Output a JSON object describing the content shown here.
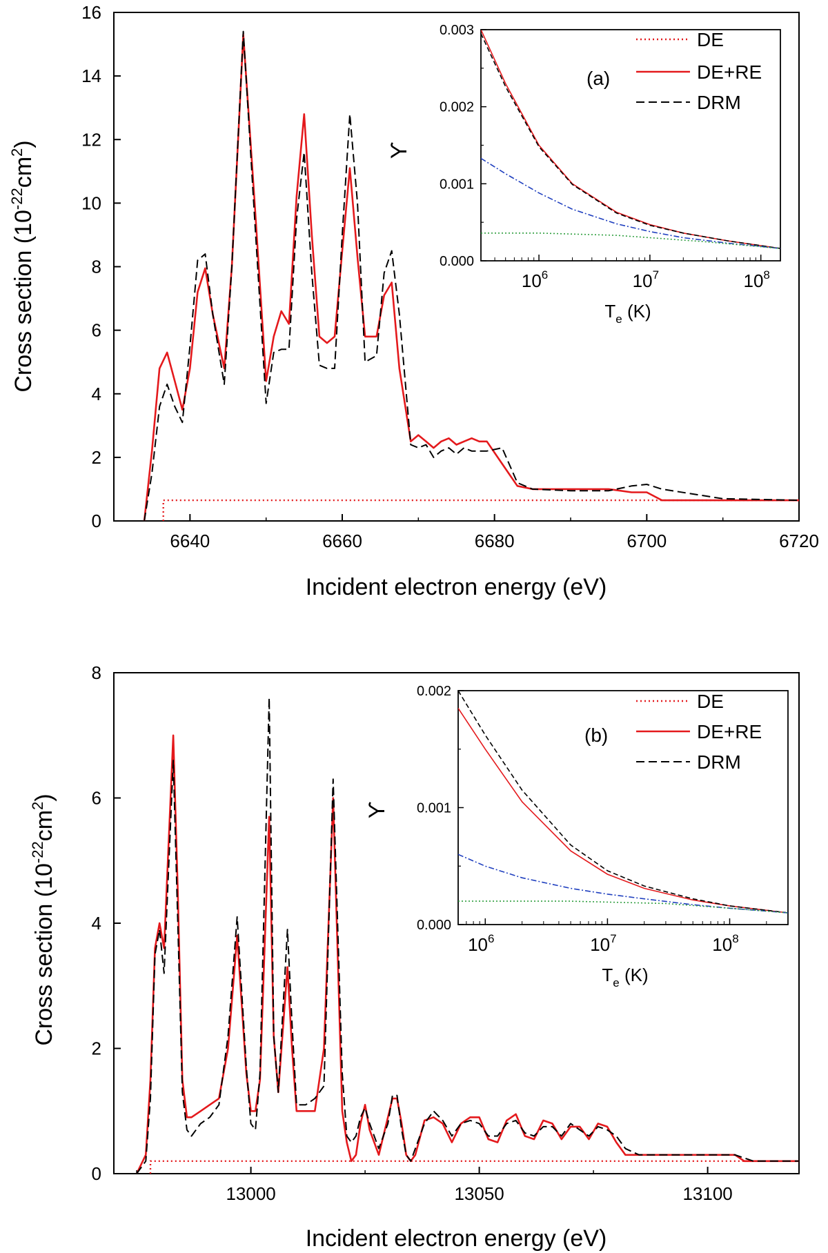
{
  "chart_data": [
    {
      "type": "line",
      "panel": "top",
      "xlabel": "Incident electron energy (eV)",
      "ylabel": "Cross section",
      "ylabel_unit": "(10-22cm2)",
      "xlim": [
        6630,
        6720
      ],
      "ylim": [
        0,
        16
      ],
      "xticks": [
        6640,
        6660,
        6680,
        6700,
        6720
      ],
      "yticks": [
        0,
        2,
        4,
        6,
        8,
        10,
        12,
        14,
        16
      ],
      "series": [
        {
          "name": "DE",
          "color": "#e4191c",
          "style": "dotted",
          "x": [
            6636.5,
            6636.5,
            6720
          ],
          "y": [
            0,
            0.65,
            0.65
          ]
        },
        {
          "name": "DE+RE",
          "color": "#e4191c",
          "style": "solid",
          "x": [
            6634,
            6635,
            6636,
            6637,
            6638,
            6639,
            6640,
            6641,
            6642,
            6643,
            6644.5,
            6645.5,
            6647,
            6648.5,
            6650,
            6651,
            6652,
            6653,
            6654,
            6655,
            6656,
            6657,
            6658,
            6659,
            6660,
            6661,
            6662,
            6663,
            6664.5,
            6665.5,
            6666.5,
            6667.5,
            6669,
            6670,
            6671,
            6672,
            6673,
            6674,
            6675,
            6676,
            6677,
            6678,
            6679,
            6681,
            6683,
            6685,
            6690,
            6695,
            6698,
            6700,
            6702,
            6710,
            6720
          ],
          "y": [
            0,
            2.2,
            4.8,
            5.3,
            4.4,
            3.5,
            4.8,
            7.2,
            7.95,
            6.5,
            4.8,
            8.0,
            15.3,
            10.0,
            4.4,
            5.8,
            6.6,
            6.2,
            10.2,
            12.8,
            9.0,
            5.8,
            5.6,
            5.8,
            8.5,
            11.1,
            8.3,
            5.8,
            5.8,
            7.1,
            7.5,
            4.8,
            2.5,
            2.7,
            2.5,
            2.3,
            2.5,
            2.6,
            2.4,
            2.5,
            2.6,
            2.5,
            2.5,
            1.8,
            1.1,
            1.0,
            1.0,
            1.0,
            0.9,
            0.9,
            0.65,
            0.65,
            0.65
          ]
        },
        {
          "name": "DRM",
          "color": "#000000",
          "style": "dashed",
          "x": [
            6634,
            6635,
            6636,
            6637,
            6638,
            6639,
            6640,
            6641,
            6642,
            6643,
            6644.5,
            6645.5,
            6647,
            6648.5,
            6650,
            6651,
            6652,
            6653,
            6654,
            6655,
            6656,
            6657,
            6658,
            6659,
            6660,
            6661,
            6662,
            6663,
            6664.5,
            6665.5,
            6666.5,
            6667.5,
            6669,
            6670,
            6671,
            6672,
            6673,
            6674,
            6675,
            6676,
            6677,
            6678,
            6679,
            6681,
            6683,
            6685,
            6690,
            6695,
            6698,
            6700,
            6702,
            6710,
            6720
          ],
          "y": [
            0,
            1.5,
            3.6,
            4.3,
            3.6,
            3.1,
            5.5,
            8.2,
            8.4,
            6.5,
            4.3,
            8.0,
            15.4,
            9.5,
            3.7,
            5.3,
            5.4,
            5.4,
            9.5,
            11.6,
            7.8,
            4.9,
            4.8,
            4.8,
            9.0,
            12.8,
            10.0,
            5.0,
            5.2,
            7.8,
            8.5,
            6.5,
            2.4,
            2.3,
            2.4,
            2.0,
            2.2,
            2.3,
            2.1,
            2.3,
            2.2,
            2.2,
            2.2,
            2.3,
            1.2,
            1.0,
            0.95,
            0.95,
            1.1,
            1.15,
            1.0,
            0.7,
            0.65
          ]
        }
      ],
      "inset": {
        "label": "(a)",
        "ylabel": "ϒ",
        "xlabel_main": "T",
        "xlabel_sub": "e",
        "xlabel_rest": " (K)",
        "xscale": "log",
        "xlim": [
          300000,
          150000000
        ],
        "ylim": [
          0,
          0.003
        ],
        "yticks": [
          "0.000",
          "0.001",
          "0.002",
          "0.003"
        ],
        "xticks": [
          {
            "value": 1000000,
            "base": "10",
            "exp": "6"
          },
          {
            "value": 10000000,
            "base": "10",
            "exp": "7"
          },
          {
            "value": 100000000,
            "base": "10",
            "exp": "8"
          }
        ],
        "series": [
          {
            "name": "DE+RE",
            "color": "#e4191c",
            "style": "solid",
            "x": [
              300000,
              500000,
              1000000,
              2000000,
              5000000,
              10000000,
              20000000,
              50000000,
              150000000
            ],
            "y": [
              0.003,
              0.0023,
              0.0015,
              0.001,
              0.00063,
              0.00047,
              0.00036,
              0.00026,
              0.00016
            ]
          },
          {
            "name": "DRM",
            "color": "#000000",
            "style": "dashed",
            "x": [
              300000,
              500000,
              1000000,
              2000000,
              5000000,
              10000000,
              20000000,
              50000000,
              150000000
            ],
            "y": [
              0.00295,
              0.00226,
              0.00148,
              0.00099,
              0.00062,
              0.00046,
              0.00036,
              0.00026,
              0.00016
            ]
          },
          {
            "name": "component-blue",
            "color": "#1f3fbf",
            "style": "dashdot",
            "x": [
              300000,
              500000,
              1000000,
              2000000,
              5000000,
              10000000,
              20000000,
              50000000,
              150000000
            ],
            "y": [
              0.00133,
              0.00113,
              0.00088,
              0.00067,
              0.00048,
              0.00038,
              0.0003,
              0.00023,
              0.00016
            ]
          },
          {
            "name": "component-green",
            "color": "#2e9e3e",
            "style": "dotted",
            "x": [
              300000,
              1000000,
              5000000,
              10000000,
              30000000,
              150000000
            ],
            "y": [
              0.00036,
              0.00036,
              0.00033,
              0.0003,
              0.00025,
              0.00016
            ]
          }
        ]
      }
    },
    {
      "type": "line",
      "panel": "bottom",
      "xlabel": "Incident electron energy (eV)",
      "ylabel": "Cross section",
      "ylabel_unit": "(10-22cm2)",
      "xlim": [
        12970,
        13120
      ],
      "ylim": [
        0,
        8
      ],
      "xticks": [
        13000,
        13050,
        13100
      ],
      "yticks": [
        0,
        2,
        4,
        6,
        8
      ],
      "series": [
        {
          "name": "DE",
          "color": "#e4191c",
          "style": "dotted",
          "x": [
            12978,
            12978,
            13120
          ],
          "y": [
            0,
            0.2,
            0.2
          ]
        },
        {
          "name": "DE+RE",
          "color": "#e4191c",
          "style": "solid",
          "x": [
            12975,
            12977,
            12978,
            12979,
            12980,
            12981,
            12983,
            12984,
            12985,
            12986,
            12987,
            12989,
            12991,
            12993,
            12995,
            12997,
            12999,
            13000,
            13001,
            13002,
            13004,
            13005,
            13006,
            13008,
            13009,
            13010,
            13012,
            13014,
            13016,
            13018,
            13020,
            13021,
            13022,
            13023,
            13024,
            13025,
            13026,
            13028,
            13030,
            13031,
            13032,
            13033,
            13034,
            13035,
            13036,
            13038,
            13040,
            13042,
            13044,
            13046,
            13048,
            13050,
            13052,
            13054,
            13056,
            13058,
            13060,
            13062,
            13064,
            13066,
            13068,
            13070,
            13072,
            13074,
            13076,
            13078,
            13080,
            13082,
            13085,
            13090,
            13100,
            13106,
            13108,
            13110,
            13120
          ],
          "y": [
            0,
            0.3,
            1.5,
            3.6,
            4.0,
            3.6,
            7.0,
            4.5,
            1.5,
            0.9,
            0.9,
            1.0,
            1.1,
            1.2,
            2.0,
            3.8,
            1.6,
            1.0,
            1.0,
            1.5,
            5.7,
            2.2,
            1.3,
            3.3,
            2.0,
            1.0,
            1.0,
            1.0,
            2.0,
            6.0,
            1.0,
            0.5,
            0.2,
            0.3,
            0.8,
            1.1,
            0.7,
            0.3,
            0.9,
            1.2,
            1.2,
            0.8,
            0.3,
            0.2,
            0.3,
            0.85,
            0.9,
            0.8,
            0.5,
            0.8,
            0.9,
            0.9,
            0.55,
            0.5,
            0.85,
            0.95,
            0.6,
            0.55,
            0.85,
            0.8,
            0.55,
            0.75,
            0.75,
            0.55,
            0.8,
            0.75,
            0.5,
            0.3,
            0.3,
            0.3,
            0.3,
            0.3,
            0.2,
            0.2,
            0.2
          ]
        },
        {
          "name": "DRM",
          "color": "#000000",
          "style": "dashed",
          "x": [
            12975,
            12977,
            12978,
            12979,
            12980,
            12981,
            12983,
            12984,
            12985,
            12986,
            12987,
            12989,
            12991,
            12993,
            12995,
            12997,
            12999,
            13000,
            13001,
            13002,
            13004,
            13005,
            13006,
            13008,
            13009,
            13010,
            13012,
            13014,
            13016,
            13018,
            13020,
            13021,
            13022,
            13023,
            13024,
            13025,
            13026,
            13028,
            13030,
            13031,
            13032,
            13033,
            13034,
            13035,
            13036,
            13038,
            13040,
            13042,
            13044,
            13046,
            13048,
            13050,
            13052,
            13054,
            13056,
            13058,
            13060,
            13062,
            13064,
            13066,
            13068,
            13070,
            13072,
            13074,
            13076,
            13078,
            13080,
            13082,
            13085,
            13090,
            13100,
            13106,
            13108,
            13110,
            13120
          ],
          "y": [
            0,
            0.2,
            1.2,
            3.5,
            3.9,
            3.2,
            6.6,
            4.0,
            1.3,
            0.7,
            0.6,
            0.8,
            0.9,
            1.1,
            2.2,
            4.1,
            1.7,
            0.8,
            0.7,
            1.6,
            7.6,
            2.2,
            1.3,
            3.9,
            2.4,
            1.1,
            1.1,
            1.2,
            1.4,
            6.3,
            1.6,
            0.6,
            0.5,
            0.6,
            0.9,
            1.05,
            0.8,
            0.4,
            0.8,
            1.25,
            1.25,
            0.7,
            0.3,
            0.2,
            0.4,
            0.8,
            1.0,
            0.85,
            0.6,
            0.8,
            0.85,
            0.8,
            0.6,
            0.6,
            0.8,
            0.85,
            0.65,
            0.6,
            0.75,
            0.75,
            0.6,
            0.8,
            0.7,
            0.6,
            0.75,
            0.7,
            0.6,
            0.4,
            0.3,
            0.3,
            0.3,
            0.3,
            0.25,
            0.2,
            0.2
          ]
        }
      ],
      "inset": {
        "label": "(b)",
        "ylabel": "ϒ",
        "xlabel_main": "T",
        "xlabel_sub": "e",
        "xlabel_rest": " (K)",
        "xscale": "log",
        "xlim": [
          600000,
          300000000
        ],
        "ylim": [
          0,
          0.002
        ],
        "yticks": [
          "0.000",
          "0.001",
          "0.002"
        ],
        "xticks": [
          {
            "value": 1000000,
            "base": "10",
            "exp": "6"
          },
          {
            "value": 10000000,
            "base": "10",
            "exp": "7"
          },
          {
            "value": 100000000,
            "base": "10",
            "exp": "8"
          }
        ],
        "series": [
          {
            "name": "DE+RE",
            "color": "#e4191c",
            "style": "solid",
            "x": [
              600000,
              1000000,
              2000000,
              5000000,
              10000000,
              20000000,
              50000000,
              100000000,
              300000000
            ],
            "y": [
              0.00185,
              0.0015,
              0.00105,
              0.00063,
              0.00043,
              0.00031,
              0.00021,
              0.00016,
              0.0001
            ]
          },
          {
            "name": "DRM",
            "color": "#000000",
            "style": "dashed",
            "x": [
              600000,
              1000000,
              2000000,
              5000000,
              10000000,
              20000000,
              50000000,
              100000000,
              300000000
            ],
            "y": [
              0.002,
              0.00162,
              0.00115,
              0.00068,
              0.00046,
              0.00033,
              0.00022,
              0.00016,
              0.0001
            ]
          },
          {
            "name": "component-blue",
            "color": "#1f3fbf",
            "style": "dashdot",
            "x": [
              600000,
              1000000,
              2000000,
              5000000,
              10000000,
              20000000,
              50000000,
              100000000,
              300000000
            ],
            "y": [
              0.0006,
              0.0005,
              0.0004,
              0.00031,
              0.00026,
              0.00022,
              0.00017,
              0.00014,
              0.0001
            ]
          },
          {
            "name": "component-green",
            "color": "#2e9e3e",
            "style": "dotted",
            "x": [
              600000,
              5000000,
              30000000,
              100000000,
              300000000
            ],
            "y": [
              0.0002,
              0.0002,
              0.00018,
              0.00014,
              0.0001
            ]
          }
        ]
      }
    }
  ]
}
